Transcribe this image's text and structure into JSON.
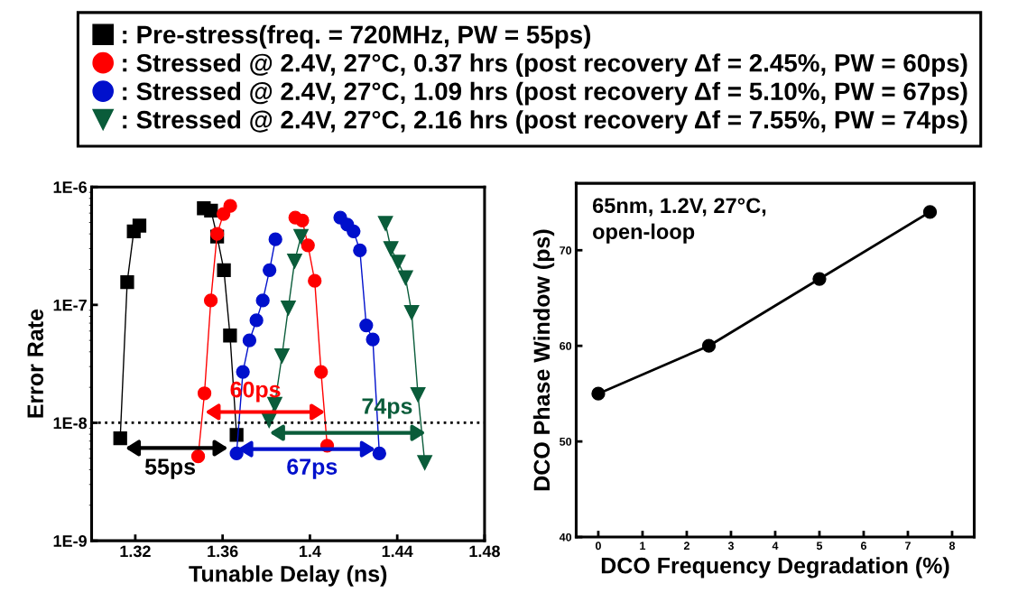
{
  "chart_data": [
    {
      "type": "line",
      "xlabel": "Tunable Delay (ns)",
      "ylabel": "Error Rate",
      "log": "y",
      "xlim": [
        1.3,
        1.48
      ],
      "xticks": [
        1.32,
        1.36,
        1.4,
        1.44,
        1.48
      ],
      "ylim": [
        1e-09,
        1e-06
      ],
      "yticks": [
        {
          "value": 1e-09,
          "label": "1E-9"
        },
        {
          "value": 1e-08,
          "label": "1E-8"
        },
        {
          "value": 1e-07,
          "label": "1E-7"
        },
        {
          "value": 1e-06,
          "label": "1E-6"
        }
      ],
      "grid": false,
      "legend": "top",
      "ref_lines": [
        {
          "axis": "y",
          "value": 1e-08,
          "color": "#000000",
          "line_style": "dotted"
        }
      ],
      "series": [
        {
          "name": ": Pre-stress(freq. = 720MHz, PW = 55ps)",
          "color": "#000000",
          "marker": "square",
          "x": [
            1.3131,
            1.3163,
            1.3193,
            1.3219,
            null,
            1.3514,
            1.3547,
            1.3575,
            1.3606,
            1.3634,
            1.3664
          ],
          "values": [
            7.4e-09,
            1.56e-07,
            4.2e-07,
            4.7e-07,
            null,
            6.6e-07,
            6.3e-07,
            3.8e-07,
            1.97e-07,
            5.5e-08,
            7.9e-09
          ]
        },
        {
          "name": ": Stressed @ 2.4V, 27°C, 0.37 hrs (post recovery Δf = 2.45%, PW = 60ps)",
          "color": "#ff0000",
          "marker": "circle",
          "x": [
            1.3488,
            1.3517,
            1.3546,
            1.3575,
            1.3604,
            1.3635,
            null,
            1.3933,
            1.3965,
            1.3991,
            1.4022,
            1.4051,
            1.4079
          ],
          "values": [
            5.2e-09,
            1.78e-08,
            1.09e-07,
            4e-07,
            5.9e-07,
            6.9e-07,
            null,
            5.5e-07,
            5.2e-07,
            3.2e-07,
            1.6e-07,
            2.7e-08,
            6.4e-09
          ]
        },
        {
          "name": ": Stressed @ 2.4V, 27°C, 1.09 hrs (post recovery Δf = 5.10%, PW = 67ps)",
          "color": "#0010cc",
          "marker": "circle",
          "x": [
            1.3664,
            1.3693,
            1.3723,
            1.3755,
            1.3784,
            1.3815,
            1.3842,
            null,
            1.4139,
            1.4171,
            1.42,
            1.4229,
            1.4258,
            1.4288,
            1.4318
          ],
          "values": [
            5.5e-09,
            2.7e-08,
            5e-08,
            7.4e-08,
            1.09e-07,
            1.97e-07,
            3.6e-07,
            null,
            5.5e-07,
            4.8e-07,
            4.2e-07,
            2.9e-07,
            6.7e-08,
            5.1e-08,
            5.5e-09
          ]
        },
        {
          "name": ": Stressed @ 2.4V, 27°C, 2.16 hrs (post recovery Δf = 7.55%, PW = 74ps)",
          "color": "#0a5c3a",
          "marker": "triangle",
          "x": [
            1.3813,
            1.3839,
            1.3872,
            1.3901,
            1.393,
            1.3959,
            null,
            1.4346,
            1.4371,
            1.4404,
            1.4438,
            1.4466,
            1.4495,
            1.4526
          ],
          "values": [
            1.05e-08,
            1.43e-08,
            3.7e-08,
            9.4e-08,
            2.35e-07,
            3.8e-07,
            null,
            4.9e-07,
            3e-07,
            2.3e-07,
            1.7e-07,
            8.6e-08,
            1.73e-08,
            4.6e-09
          ]
        }
      ],
      "annotations": [
        "55ps",
        "60ps",
        "67ps",
        "74ps"
      ]
    },
    {
      "type": "line",
      "xlabel": "DCO Frequency Degradation (%)",
      "ylabel": "DCO Phase Window (ps)",
      "xlim": [
        -0.5,
        8.5
      ],
      "xticks": [
        0,
        1,
        2,
        3,
        4,
        5,
        6,
        7,
        8
      ],
      "ylim": [
        40,
        77
      ],
      "yticks": [
        40,
        50,
        60,
        70
      ],
      "grid": false,
      "series": [
        {
          "color": "#000000",
          "marker": "circle",
          "x": [
            0,
            2.5,
            5,
            7.5
          ],
          "values": [
            55,
            60,
            67,
            74
          ]
        }
      ],
      "annotations": [
        "65nm, 1.2V, 27°C,\nopen-loop"
      ]
    }
  ]
}
